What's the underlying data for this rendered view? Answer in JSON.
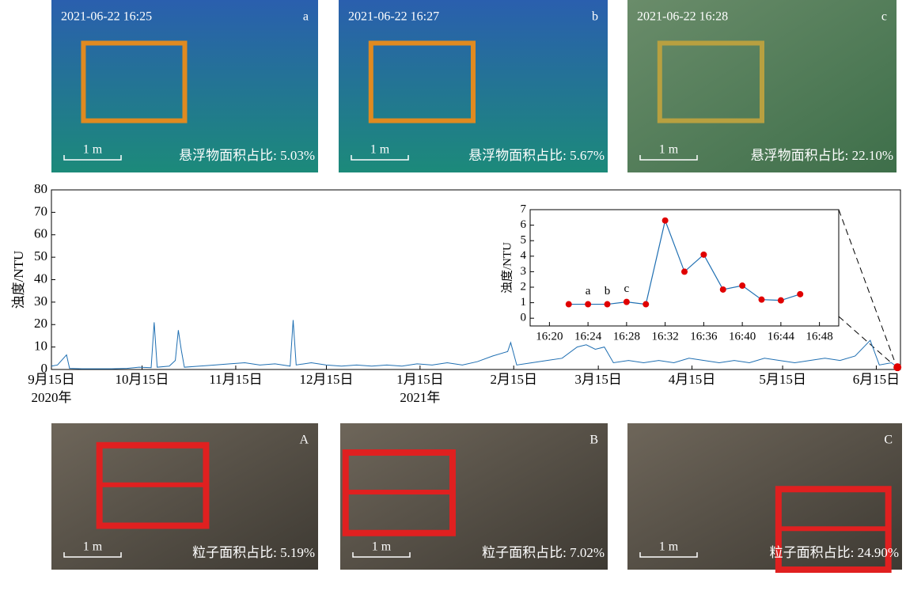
{
  "photos_top": [
    {
      "timestamp": "2021-06-22 16:25",
      "letter": "a",
      "scale": "1 m",
      "caption": "悬浮物面积占比: 5.03%"
    },
    {
      "timestamp": "2021-06-22 16:27",
      "letter": "b",
      "scale": "1 m",
      "caption": "悬浮物面积占比: 5.67%"
    },
    {
      "timestamp": "2021-06-22 16:28",
      "letter": "c",
      "scale": "1 m",
      "caption": "悬浮物面积占比: 22.10%"
    }
  ],
  "chart_data": [
    {
      "type": "line",
      "y_label": "浊度/NTU",
      "color": "#1f6fb2",
      "last_point_color": "#e00000",
      "x": [
        "2020-09-15",
        "2020-09-17",
        "2020-09-20",
        "2020-09-21",
        "2020-09-25",
        "2020-09-30",
        "2020-10-05",
        "2020-10-10",
        "2020-10-14",
        "2020-10-18",
        "2020-10-19",
        "2020-10-20",
        "2020-10-24",
        "2020-10-26",
        "2020-10-27",
        "2020-10-28",
        "2020-10-29",
        "2020-11-03",
        "2020-11-08",
        "2020-11-13",
        "2020-11-18",
        "2020-11-23",
        "2020-11-28",
        "2020-12-03",
        "2020-12-04",
        "2020-12-05",
        "2020-12-10",
        "2020-12-15",
        "2020-12-20",
        "2020-12-25",
        "2020-12-30",
        "2021-01-04",
        "2021-01-09",
        "2021-01-14",
        "2021-01-19",
        "2021-01-24",
        "2021-01-29",
        "2021-02-03",
        "2021-02-08",
        "2021-02-13",
        "2021-02-14",
        "2021-02-16",
        "2021-02-21",
        "2021-02-26",
        "2021-03-03",
        "2021-03-08",
        "2021-03-11",
        "2021-03-14",
        "2021-03-17",
        "2021-03-20",
        "2021-03-25",
        "2021-03-30",
        "2021-04-04",
        "2021-04-09",
        "2021-04-14",
        "2021-04-19",
        "2021-04-24",
        "2021-04-29",
        "2021-05-04",
        "2021-05-09",
        "2021-05-14",
        "2021-05-19",
        "2021-05-24",
        "2021-05-29",
        "2021-06-03",
        "2021-06-08",
        "2021-06-13",
        "2021-06-16",
        "2021-06-20",
        "2021-06-22"
      ],
      "values": [
        1.5,
        2,
        6.5,
        0.5,
        0.3,
        0.3,
        0.3,
        0.5,
        1,
        0.8,
        21,
        1,
        1.5,
        4,
        17.5,
        8.5,
        1,
        1.5,
        2,
        2.5,
        3,
        2,
        2.5,
        1.5,
        22,
        2,
        3,
        2,
        1.5,
        2,
        1.5,
        2,
        1.5,
        2.5,
        2,
        3,
        2,
        3.5,
        6,
        8,
        12,
        2,
        3,
        4,
        5,
        10,
        11,
        9,
        10,
        3,
        4,
        3,
        4,
        3,
        5,
        4,
        3,
        4,
        3,
        5,
        4,
        3,
        4,
        5,
        4,
        6,
        13,
        2,
        3,
        1
      ],
      "xlim": [
        "2020-09-15",
        "2021-06-23"
      ],
      "xticks": [
        {
          "value": "2020-09-15",
          "label": "9月15日"
        },
        {
          "value": "2020-10-15",
          "label": "10月15日"
        },
        {
          "value": "2020-11-15",
          "label": "11月15日"
        },
        {
          "value": "2020-12-15",
          "label": "12月15日"
        },
        {
          "value": "2021-01-15",
          "label": "1月15日"
        },
        {
          "value": "2021-02-15",
          "label": "2月15日"
        },
        {
          "value": "2021-03-15",
          "label": "3月15日"
        },
        {
          "value": "2021-04-15",
          "label": "4月15日"
        },
        {
          "value": "2021-05-15",
          "label": "5月15日"
        },
        {
          "value": "2021-06-15",
          "label": "6月15日"
        }
      ],
      "year_labels": [
        {
          "value": "2020-09-15",
          "label": "2020年"
        },
        {
          "value": "2021-01-15",
          "label": "2021年"
        }
      ],
      "ylim": [
        0,
        80
      ],
      "yticks": [
        0,
        10,
        20,
        30,
        40,
        50,
        60,
        70,
        80
      ]
    },
    {
      "type": "line",
      "y_label": "浊度/NTU",
      "color": "#1f6fb2",
      "marker_color": "#e00000",
      "x": [
        "16:22",
        "16:24",
        "16:26",
        "16:28",
        "16:30",
        "16:32",
        "16:34",
        "16:36",
        "16:38",
        "16:40",
        "16:42",
        "16:44",
        "16:46"
      ],
      "values": [
        0.9,
        0.9,
        0.9,
        1.05,
        0.9,
        6.3,
        3.0,
        4.1,
        1.85,
        2.1,
        1.2,
        1.15,
        1.55
      ],
      "point_labels": [
        null,
        "a",
        "b",
        "c",
        null,
        null,
        null,
        null,
        null,
        null,
        null,
        null,
        null
      ],
      "xlim": [
        "16:18",
        "16:50"
      ],
      "xticks": [
        "16:20",
        "16:24",
        "16:28",
        "16:32",
        "16:36",
        "16:40",
        "16:44",
        "16:48"
      ],
      "ylim": [
        -0.5,
        7
      ],
      "yticks": [
        0,
        1,
        2,
        3,
        4,
        5,
        6,
        7
      ]
    }
  ],
  "photos_bottom": [
    {
      "letter": "A",
      "scale": "1 m",
      "caption": "粒子面积占比: 5.19%"
    },
    {
      "letter": "B",
      "scale": "1 m",
      "caption": "粒子面积占比: 7.02%"
    },
    {
      "letter": "C",
      "scale": "1 m",
      "caption": "粒子面积占比: 24.90%"
    }
  ]
}
